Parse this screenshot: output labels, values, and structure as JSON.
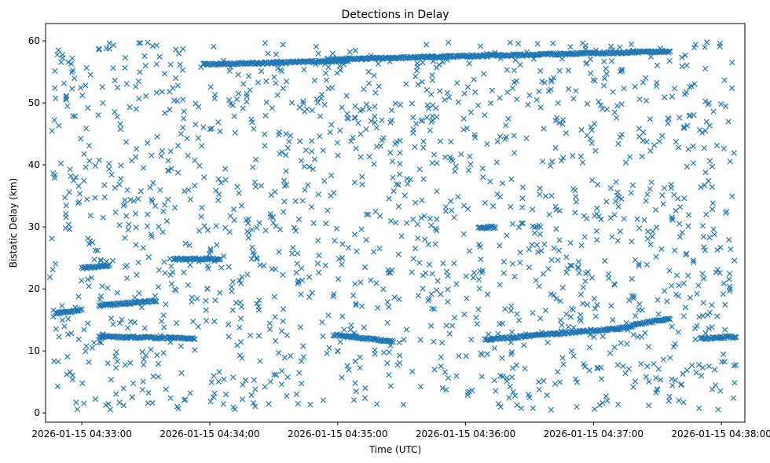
{
  "chart_data": {
    "type": "scatter",
    "title": "Detections in Delay",
    "xlabel": "Time (UTC)",
    "ylabel": "Bistatic Delay (km)",
    "x_ticks": [
      "2026-01-15 04:33:00",
      "2026-01-15 04:34:00",
      "2026-01-15 04:35:00",
      "2026-01-15 04:36:00",
      "2026-01-15 04:37:00",
      "2026-01-15 04:38:00"
    ],
    "y_ticks": [
      0,
      10,
      20,
      30,
      40,
      50,
      60
    ],
    "xlim": [
      "2026-01-15 04:32:43",
      "2026-01-15 04:38:11"
    ],
    "ylim": [
      -1.5,
      62.8
    ],
    "grid": false,
    "marker": "x",
    "color": "#1f77b4",
    "series": [
      {
        "tracks": [
          {
            "start": "2026-01-15 04:33:57",
            "end": "2026-01-15 04:35:05",
            "delay_start": 56.2,
            "delay_end": 56.8
          },
          {
            "start": "2026-01-15 04:34:55",
            "end": "2026-01-15 04:37:36",
            "delay_start": 57.0,
            "delay_end": 58.3
          },
          {
            "start": "2026-01-15 04:33:08",
            "end": "2026-01-15 04:33:53",
            "delay_start": 12.3,
            "delay_end": 12.0
          },
          {
            "start": "2026-01-15 04:34:58",
            "end": "2026-01-15 04:35:26",
            "delay_start": 12.6,
            "delay_end": 11.5
          },
          {
            "start": "2026-01-15 04:36:09",
            "end": "2026-01-15 04:37:18",
            "delay_start": 11.8,
            "delay_end": 13.8
          },
          {
            "start": "2026-01-15 04:37:18",
            "end": "2026-01-15 04:37:36",
            "delay_start": 14.2,
            "delay_end": 15.2
          },
          {
            "start": "2026-01-15 04:33:08",
            "end": "2026-01-15 04:33:35",
            "delay_start": 17.3,
            "delay_end": 18.1
          },
          {
            "start": "2026-01-15 04:32:48",
            "end": "2026-01-15 04:33:00",
            "delay_start": 16.0,
            "delay_end": 16.6
          },
          {
            "start": "2026-01-15 04:33:43",
            "end": "2026-01-15 04:34:05",
            "delay_start": 24.8,
            "delay_end": 24.8
          },
          {
            "start": "2026-01-15 04:36:06",
            "end": "2026-01-15 04:36:14",
            "delay_start": 29.8,
            "delay_end": 30.0
          },
          {
            "start": "2026-01-15 04:33:00",
            "end": "2026-01-15 04:33:13",
            "delay_start": 23.4,
            "delay_end": 23.8
          },
          {
            "start": "2026-01-15 04:37:50",
            "end": "2026-01-15 04:38:07",
            "delay_start": 12.0,
            "delay_end": 12.3
          }
        ],
        "noise_points": 1600,
        "noise_time_range": [
          "2026-01-15 04:32:45",
          "2026-01-15 04:38:07"
        ],
        "noise_delay_range": [
          0.5,
          59.8
        ]
      }
    ]
  }
}
